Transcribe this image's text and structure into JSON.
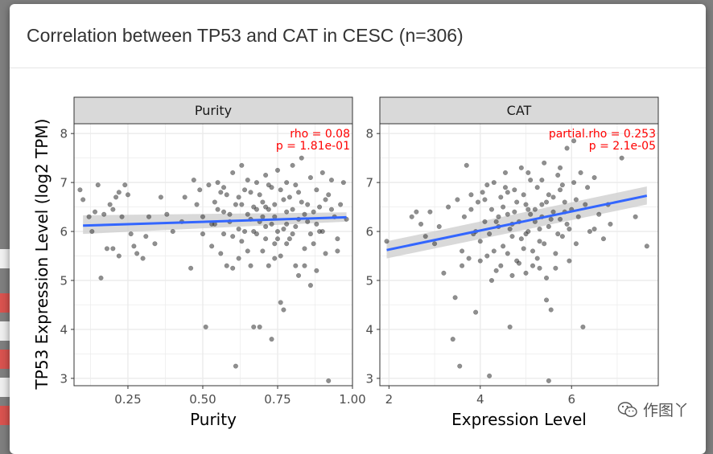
{
  "modal": {
    "title": "Correlation between TP53 and CAT in CESC (n=306)"
  },
  "watermark": {
    "text": "作图丫",
    "icon": "wechat-icon"
  },
  "colors": {
    "fit_line": "#3366ff",
    "ribbon": "#cccccc",
    "points": "#333333",
    "annotation": "#ff0000",
    "strip": "#d9d9d9",
    "grid": "#ebebeb"
  },
  "chart_data": [
    {
      "type": "scatter",
      "facet": "Purity",
      "xlabel": "Purity",
      "ylabel": "TP53 Expression Level (log2 TPM)",
      "xlim": [
        0.07,
        1.0
      ],
      "ylim": [
        2.85,
        8.2
      ],
      "xticks": [
        0.25,
        0.5,
        0.75,
        1.0
      ],
      "xtick_labels": [
        "0.25",
        "0.50",
        "0.75",
        "1.00"
      ],
      "yticks": [
        3,
        4,
        5,
        6,
        7,
        8
      ],
      "annotation": [
        "rho = 0.08",
        "p = 1.81e-01"
      ],
      "fit": {
        "x": [
          0.1,
          0.98
        ],
        "y": [
          6.12,
          6.29
        ],
        "ribbon_low": [
          5.95,
          6.2
        ],
        "ribbon_high": [
          6.33,
          6.39
        ]
      },
      "points": [
        [
          0.09,
          6.85
        ],
        [
          0.1,
          6.65
        ],
        [
          0.12,
          6.3
        ],
        [
          0.13,
          6.0
        ],
        [
          0.14,
          6.4
        ],
        [
          0.15,
          6.95
        ],
        [
          0.16,
          5.05
        ],
        [
          0.17,
          6.35
        ],
        [
          0.18,
          5.65
        ],
        [
          0.19,
          6.55
        ],
        [
          0.2,
          5.65
        ],
        [
          0.2,
          6.45
        ],
        [
          0.21,
          6.7
        ],
        [
          0.22,
          6.8
        ],
        [
          0.22,
          5.5
        ],
        [
          0.23,
          6.3
        ],
        [
          0.24,
          6.95
        ],
        [
          0.25,
          6.75
        ],
        [
          0.26,
          5.95
        ],
        [
          0.27,
          5.7
        ],
        [
          0.28,
          5.55
        ],
        [
          0.3,
          5.45
        ],
        [
          0.31,
          5.9
        ],
        [
          0.32,
          6.3
        ],
        [
          0.34,
          5.75
        ],
        [
          0.36,
          6.7
        ],
        [
          0.38,
          6.35
        ],
        [
          0.4,
          6.0
        ],
        [
          0.43,
          6.2
        ],
        [
          0.44,
          6.7
        ],
        [
          0.46,
          5.25
        ],
        [
          0.47,
          7.05
        ],
        [
          0.48,
          6.55
        ],
        [
          0.49,
          6.85
        ],
        [
          0.5,
          5.95
        ],
        [
          0.5,
          6.3
        ],
        [
          0.51,
          4.05
        ],
        [
          0.52,
          6.95
        ],
        [
          0.53,
          5.7
        ],
        [
          0.54,
          6.6
        ],
        [
          0.54,
          6.15
        ],
        [
          0.55,
          7.0
        ],
        [
          0.56,
          5.55
        ],
        [
          0.57,
          6.4
        ],
        [
          0.57,
          6.9
        ],
        [
          0.58,
          5.3
        ],
        [
          0.58,
          6.75
        ],
        [
          0.59,
          6.2
        ],
        [
          0.6,
          7.2
        ],
        [
          0.6,
          5.9
        ],
        [
          0.61,
          3.25
        ],
        [
          0.61,
          6.55
        ],
        [
          0.62,
          5.45
        ],
        [
          0.62,
          6.7
        ],
        [
          0.63,
          7.35
        ],
        [
          0.63,
          5.8
        ],
        [
          0.64,
          6.0
        ],
        [
          0.65,
          7.05
        ],
        [
          0.65,
          6.35
        ],
        [
          0.66,
          5.3
        ],
        [
          0.66,
          6.8
        ],
        [
          0.67,
          6.5
        ],
        [
          0.67,
          4.05
        ],
        [
          0.68,
          5.95
        ],
        [
          0.68,
          7.0
        ],
        [
          0.69,
          6.2
        ],
        [
          0.7,
          5.6
        ],
        [
          0.7,
          6.6
        ],
        [
          0.71,
          7.15
        ],
        [
          0.71,
          6.1
        ],
        [
          0.72,
          5.3
        ],
        [
          0.72,
          6.45
        ],
        [
          0.73,
          3.8
        ],
        [
          0.73,
          6.9
        ],
        [
          0.74,
          5.75
        ],
        [
          0.74,
          6.3
        ],
        [
          0.75,
          7.25
        ],
        [
          0.75,
          6.0
        ],
        [
          0.76,
          4.55
        ],
        [
          0.76,
          5.5
        ],
        [
          0.77,
          6.65
        ],
        [
          0.77,
          4.4
        ],
        [
          0.78,
          6.15
        ],
        [
          0.78,
          7.0
        ],
        [
          0.79,
          5.85
        ],
        [
          0.8,
          6.45
        ],
        [
          0.8,
          7.35
        ],
        [
          0.81,
          5.3
        ],
        [
          0.82,
          6.8
        ],
        [
          0.82,
          6.25
        ],
        [
          0.83,
          7.5
        ],
        [
          0.84,
          5.65
        ],
        [
          0.85,
          6.55
        ],
        [
          0.86,
          5.95
        ],
        [
          0.86,
          7.1
        ],
        [
          0.87,
          6.4
        ],
        [
          0.88,
          5.2
        ],
        [
          0.88,
          6.85
        ],
        [
          0.89,
          6.0
        ],
        [
          0.9,
          7.2
        ],
        [
          0.91,
          5.55
        ],
        [
          0.91,
          6.65
        ],
        [
          0.92,
          2.95
        ],
        [
          0.93,
          7.05
        ],
        [
          0.94,
          6.3
        ],
        [
          0.95,
          5.85
        ],
        [
          0.96,
          6.55
        ],
        [
          0.97,
          7.0
        ],
        [
          0.98,
          6.25
        ],
        [
          0.59,
          6.35
        ],
        [
          0.62,
          6.05
        ],
        [
          0.66,
          6.25
        ],
        [
          0.69,
          6.75
        ],
        [
          0.71,
          5.85
        ],
        [
          0.74,
          6.55
        ],
        [
          0.77,
          6.05
        ],
        [
          0.79,
          6.7
        ],
        [
          0.81,
          6.1
        ],
        [
          0.84,
          6.35
        ],
        [
          0.87,
          5.75
        ],
        [
          0.89,
          6.5
        ],
        [
          0.65,
          5.6
        ],
        [
          0.7,
          6.3
        ],
        [
          0.73,
          6.15
        ],
        [
          0.76,
          6.85
        ],
        [
          0.8,
          5.95
        ],
        [
          0.85,
          6.2
        ],
        [
          0.63,
          6.55
        ],
        [
          0.68,
          6.45
        ],
        [
          0.72,
          6.95
        ],
        [
          0.75,
          5.85
        ],
        [
          0.78,
          6.4
        ],
        [
          0.83,
          6.6
        ],
        [
          0.88,
          6.15
        ],
        [
          0.55,
          6.45
        ],
        [
          0.57,
          5.95
        ],
        [
          0.6,
          5.25
        ],
        [
          0.64,
          6.85
        ],
        [
          0.67,
          6.0
        ],
        [
          0.71,
          6.5
        ],
        [
          0.74,
          5.45
        ],
        [
          0.78,
          5.75
        ],
        [
          0.81,
          6.95
        ],
        [
          0.84,
          5.3
        ],
        [
          0.9,
          6.0
        ],
        [
          0.93,
          6.45
        ],
        [
          0.95,
          5.6
        ],
        [
          0.53,
          6.15
        ],
        [
          0.56,
          6.8
        ],
        [
          0.69,
          4.05
        ],
        [
          0.82,
          5.1
        ],
        [
          0.86,
          4.9
        ],
        [
          0.92,
          6.75
        ]
      ]
    },
    {
      "type": "scatter",
      "facet": "CAT",
      "xlabel": "Expression Level",
      "ylabel": "",
      "xlim": [
        1.8,
        7.9
      ],
      "ylim": [
        2.85,
        8.2
      ],
      "xticks": [
        2,
        4,
        6
      ],
      "xtick_labels": [
        "2",
        "4",
        "6"
      ],
      "yticks": [
        3,
        4,
        5,
        6,
        7,
        8
      ],
      "annotation": [
        "partial.rho = 0.253",
        "p = 2.1e-05"
      ],
      "fit": {
        "x": [
          1.95,
          7.65
        ],
        "y": [
          5.62,
          6.73
        ],
        "ribbon_low": [
          5.45,
          6.55
        ],
        "ribbon_high": [
          5.8,
          6.92
        ]
      },
      "points": [
        [
          1.95,
          5.8
        ],
        [
          2.5,
          6.3
        ],
        [
          2.6,
          6.4
        ],
        [
          2.7,
          6.15
        ],
        [
          2.8,
          5.9
        ],
        [
          2.9,
          6.4
        ],
        [
          3.0,
          5.75
        ],
        [
          3.1,
          6.1
        ],
        [
          3.2,
          5.15
        ],
        [
          3.3,
          6.5
        ],
        [
          3.4,
          3.8
        ],
        [
          3.45,
          4.65
        ],
        [
          3.5,
          6.65
        ],
        [
          3.55,
          3.25
        ],
        [
          3.6,
          5.6
        ],
        [
          3.65,
          6.3
        ],
        [
          3.7,
          7.35
        ],
        [
          3.75,
          5.45
        ],
        [
          3.8,
          6.75
        ],
        [
          3.85,
          5.95
        ],
        [
          3.9,
          4.35
        ],
        [
          3.95,
          6.6
        ],
        [
          4.0,
          5.8
        ],
        [
          4.05,
          6.8
        ],
        [
          4.1,
          6.2
        ],
        [
          4.15,
          5.5
        ],
        [
          4.2,
          3.05
        ],
        [
          4.25,
          6.45
        ],
        [
          4.3,
          7.0
        ],
        [
          4.35,
          5.2
        ],
        [
          4.4,
          6.1
        ],
        [
          4.45,
          6.7
        ],
        [
          4.5,
          5.7
        ],
        [
          4.55,
          7.2
        ],
        [
          4.6,
          6.35
        ],
        [
          4.65,
          4.05
        ],
        [
          4.7,
          5.9
        ],
        [
          4.75,
          6.85
        ],
        [
          4.8,
          5.4
        ],
        [
          4.85,
          6.2
        ],
        [
          4.9,
          7.3
        ],
        [
          4.95,
          5.65
        ],
        [
          5.0,
          6.55
        ],
        [
          5.05,
          6.0
        ],
        [
          5.1,
          7.05
        ],
        [
          5.15,
          5.3
        ],
        [
          5.2,
          6.45
        ],
        [
          5.25,
          6.9
        ],
        [
          5.3,
          5.8
        ],
        [
          5.35,
          6.3
        ],
        [
          5.4,
          7.4
        ],
        [
          5.45,
          4.6
        ],
        [
          5.5,
          6.1
        ],
        [
          5.5,
          2.95
        ],
        [
          5.55,
          4.4
        ],
        [
          5.6,
          6.7
        ],
        [
          5.65,
          5.55
        ],
        [
          5.7,
          7.15
        ],
        [
          5.75,
          6.25
        ],
        [
          5.8,
          5.9
        ],
        [
          5.85,
          6.6
        ],
        [
          5.9,
          7.7
        ],
        [
          5.95,
          5.4
        ],
        [
          6.0,
          6.45
        ],
        [
          6.05,
          7.0
        ],
        [
          6.1,
          5.75
        ],
        [
          6.15,
          6.3
        ],
        [
          6.2,
          7.2
        ],
        [
          6.25,
          4.05
        ],
        [
          6.3,
          6.55
        ],
        [
          6.4,
          6.0
        ],
        [
          6.5,
          7.1
        ],
        [
          6.6,
          6.35
        ],
        [
          6.7,
          5.85
        ],
        [
          6.85,
          6.15
        ],
        [
          7.1,
          7.5
        ],
        [
          7.4,
          6.3
        ],
        [
          7.65,
          5.7
        ],
        [
          6.05,
          7.85
        ],
        [
          4.4,
          6.3
        ],
        [
          4.6,
          5.55
        ],
        [
          4.8,
          6.6
        ],
        [
          5.0,
          5.95
        ],
        [
          5.2,
          6.2
        ],
        [
          5.4,
          5.75
        ],
        [
          5.6,
          6.4
        ],
        [
          5.8,
          6.95
        ],
        [
          4.2,
          5.95
        ],
        [
          4.5,
          6.5
        ],
        [
          4.7,
          6.15
        ],
        [
          4.9,
          5.85
        ],
        [
          5.1,
          6.35
        ],
        [
          5.3,
          6.05
        ],
        [
          5.5,
          6.75
        ],
        [
          5.7,
          5.95
        ],
        [
          5.9,
          6.15
        ],
        [
          6.1,
          6.65
        ],
        [
          4.3,
          5.6
        ],
        [
          4.55,
          6.9
        ],
        [
          4.75,
          6.4
        ],
        [
          4.95,
          6.75
        ],
        [
          5.15,
          5.6
        ],
        [
          5.35,
          6.55
        ],
        [
          5.55,
          6.25
        ],
        [
          5.75,
          6.85
        ],
        [
          5.95,
          6.05
        ],
        [
          4.1,
          6.65
        ],
        [
          4.35,
          6.2
        ],
        [
          4.65,
          6.05
        ],
        [
          4.85,
          5.35
        ],
        [
          5.05,
          6.45
        ],
        [
          5.25,
          5.45
        ],
        [
          5.45,
          6.6
        ],
        [
          5.65,
          5.25
        ],
        [
          5.85,
          6.4
        ],
        [
          3.9,
          6.0
        ],
        [
          4.0,
          5.4
        ],
        [
          4.25,
          5.0
        ],
        [
          4.45,
          5.3
        ],
        [
          4.7,
          5.1
        ],
        [
          5.0,
          5.15
        ],
        [
          5.3,
          5.25
        ],
        [
          5.45,
          5.05
        ],
        [
          3.6,
          5.3
        ],
        [
          3.8,
          6.45
        ],
        [
          4.15,
          6.95
        ],
        [
          4.6,
          6.8
        ],
        [
          5.05,
          7.2
        ],
        [
          5.35,
          7.05
        ],
        [
          5.75,
          7.3
        ],
        [
          6.35,
          6.9
        ],
        [
          6.5,
          6.05
        ],
        [
          6.8,
          6.55
        ]
      ]
    }
  ]
}
